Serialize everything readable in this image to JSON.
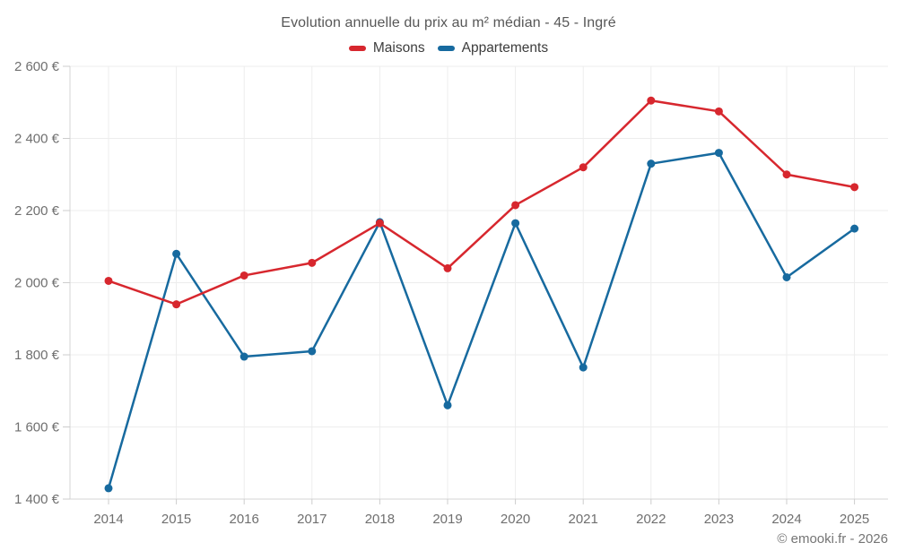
{
  "header": {
    "title": "Evolution annuelle du prix au m² médian - 45 - Ingré"
  },
  "legend": {
    "items": [
      {
        "label": "Maisons",
        "color": "#d7272e"
      },
      {
        "label": "Appartements",
        "color": "#176a9f"
      }
    ]
  },
  "footer": {
    "credit": "© emooki.fr - 2026"
  },
  "colors": {
    "maisons": "#d7272e",
    "appartements": "#176a9f",
    "grid": "#ededed",
    "axis": "#d4d4d4",
    "tick": "#cdcdcd",
    "tick_label": "#6f6f6f"
  },
  "chart_data": {
    "type": "line",
    "title": "Evolution annuelle du prix au m² médian - 45 - Ingré",
    "categories": [
      "2014",
      "2015",
      "2016",
      "2017",
      "2018",
      "2019",
      "2020",
      "2021",
      "2022",
      "2023",
      "2024",
      "2025"
    ],
    "series": [
      {
        "name": "Maisons",
        "color": "#d7272e",
        "values": [
          2005,
          1940,
          2020,
          2055,
          2165,
          2040,
          2215,
          2320,
          2505,
          2475,
          2300,
          2265
        ]
      },
      {
        "name": "Appartements",
        "color": "#176a9f",
        "values": [
          1430,
          2080,
          1795,
          1810,
          2168,
          1660,
          2165,
          1765,
          2330,
          2360,
          2015,
          2150
        ]
      }
    ],
    "xlabel": "",
    "ylabel": "",
    "ylim": [
      1400,
      2600
    ],
    "yticks": [
      1400,
      1600,
      1800,
      2000,
      2200,
      2400,
      2600
    ],
    "ytick_suffix": " €",
    "grid": true,
    "legend_position": "top",
    "marker": "circle"
  }
}
